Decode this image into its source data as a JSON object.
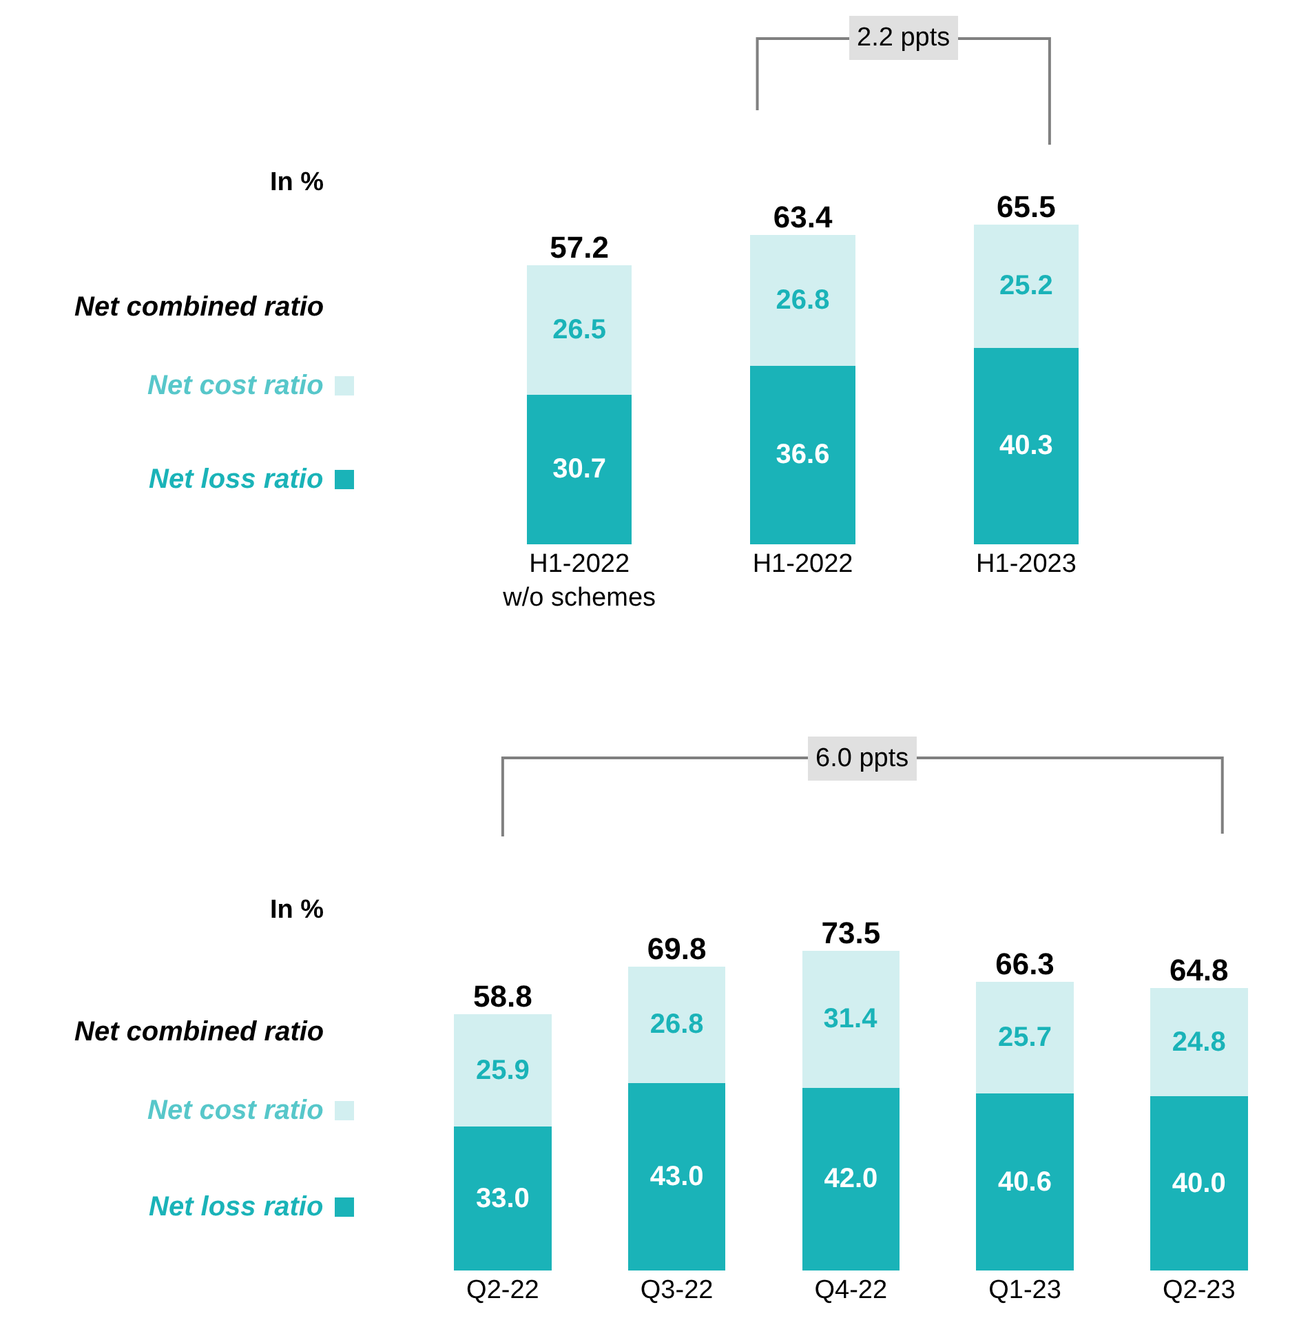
{
  "chart_data": [
    {
      "type": "bar",
      "stacked": true,
      "legend": "left",
      "categories": [
        "H1-2022\nw/o schemes",
        "H1-2022",
        "H1-2023"
      ],
      "series": [
        {
          "name": "Net loss ratio",
          "color": "#1ab3b8",
          "values": [
            30.7,
            36.6,
            40.3
          ],
          "value_labels": [
            "30.7",
            "36.6",
            "40.3"
          ]
        },
        {
          "name": "Net cost ratio",
          "color": "#d2eff0",
          "values": [
            26.5,
            26.8,
            25.2
          ],
          "value_labels": [
            "26.5",
            "26.8",
            "25.2"
          ]
        }
      ],
      "totals": [
        "57.2",
        "63.4",
        "65.5"
      ],
      "annotations": [
        "In %",
        "Net combined ratio",
        "2.2 ppts"
      ]
    },
    {
      "type": "bar",
      "stacked": true,
      "legend": "left",
      "categories": [
        "Q2-22",
        "Q3-22",
        "Q4-22",
        "Q1-23",
        "Q2-23"
      ],
      "series": [
        {
          "name": "Net loss ratio",
          "color": "#1ab3b8",
          "values": [
            33.0,
            43.0,
            42.0,
            40.6,
            40.0
          ],
          "value_labels": [
            "33.0",
            "43.0",
            "42.0",
            "40.6",
            "40.0"
          ]
        },
        {
          "name": "Net cost ratio",
          "color": "#d2eff0",
          "values": [
            25.9,
            26.8,
            31.4,
            25.7,
            24.8
          ],
          "value_labels": [
            "25.9",
            "26.8",
            "31.4",
            "25.7",
            "24.8"
          ]
        }
      ],
      "totals": [
        "58.8",
        "69.8",
        "73.5",
        "66.3",
        "64.8"
      ],
      "annotations": [
        "In %",
        "Net combined ratio",
        "6.0 ppts"
      ]
    }
  ]
}
